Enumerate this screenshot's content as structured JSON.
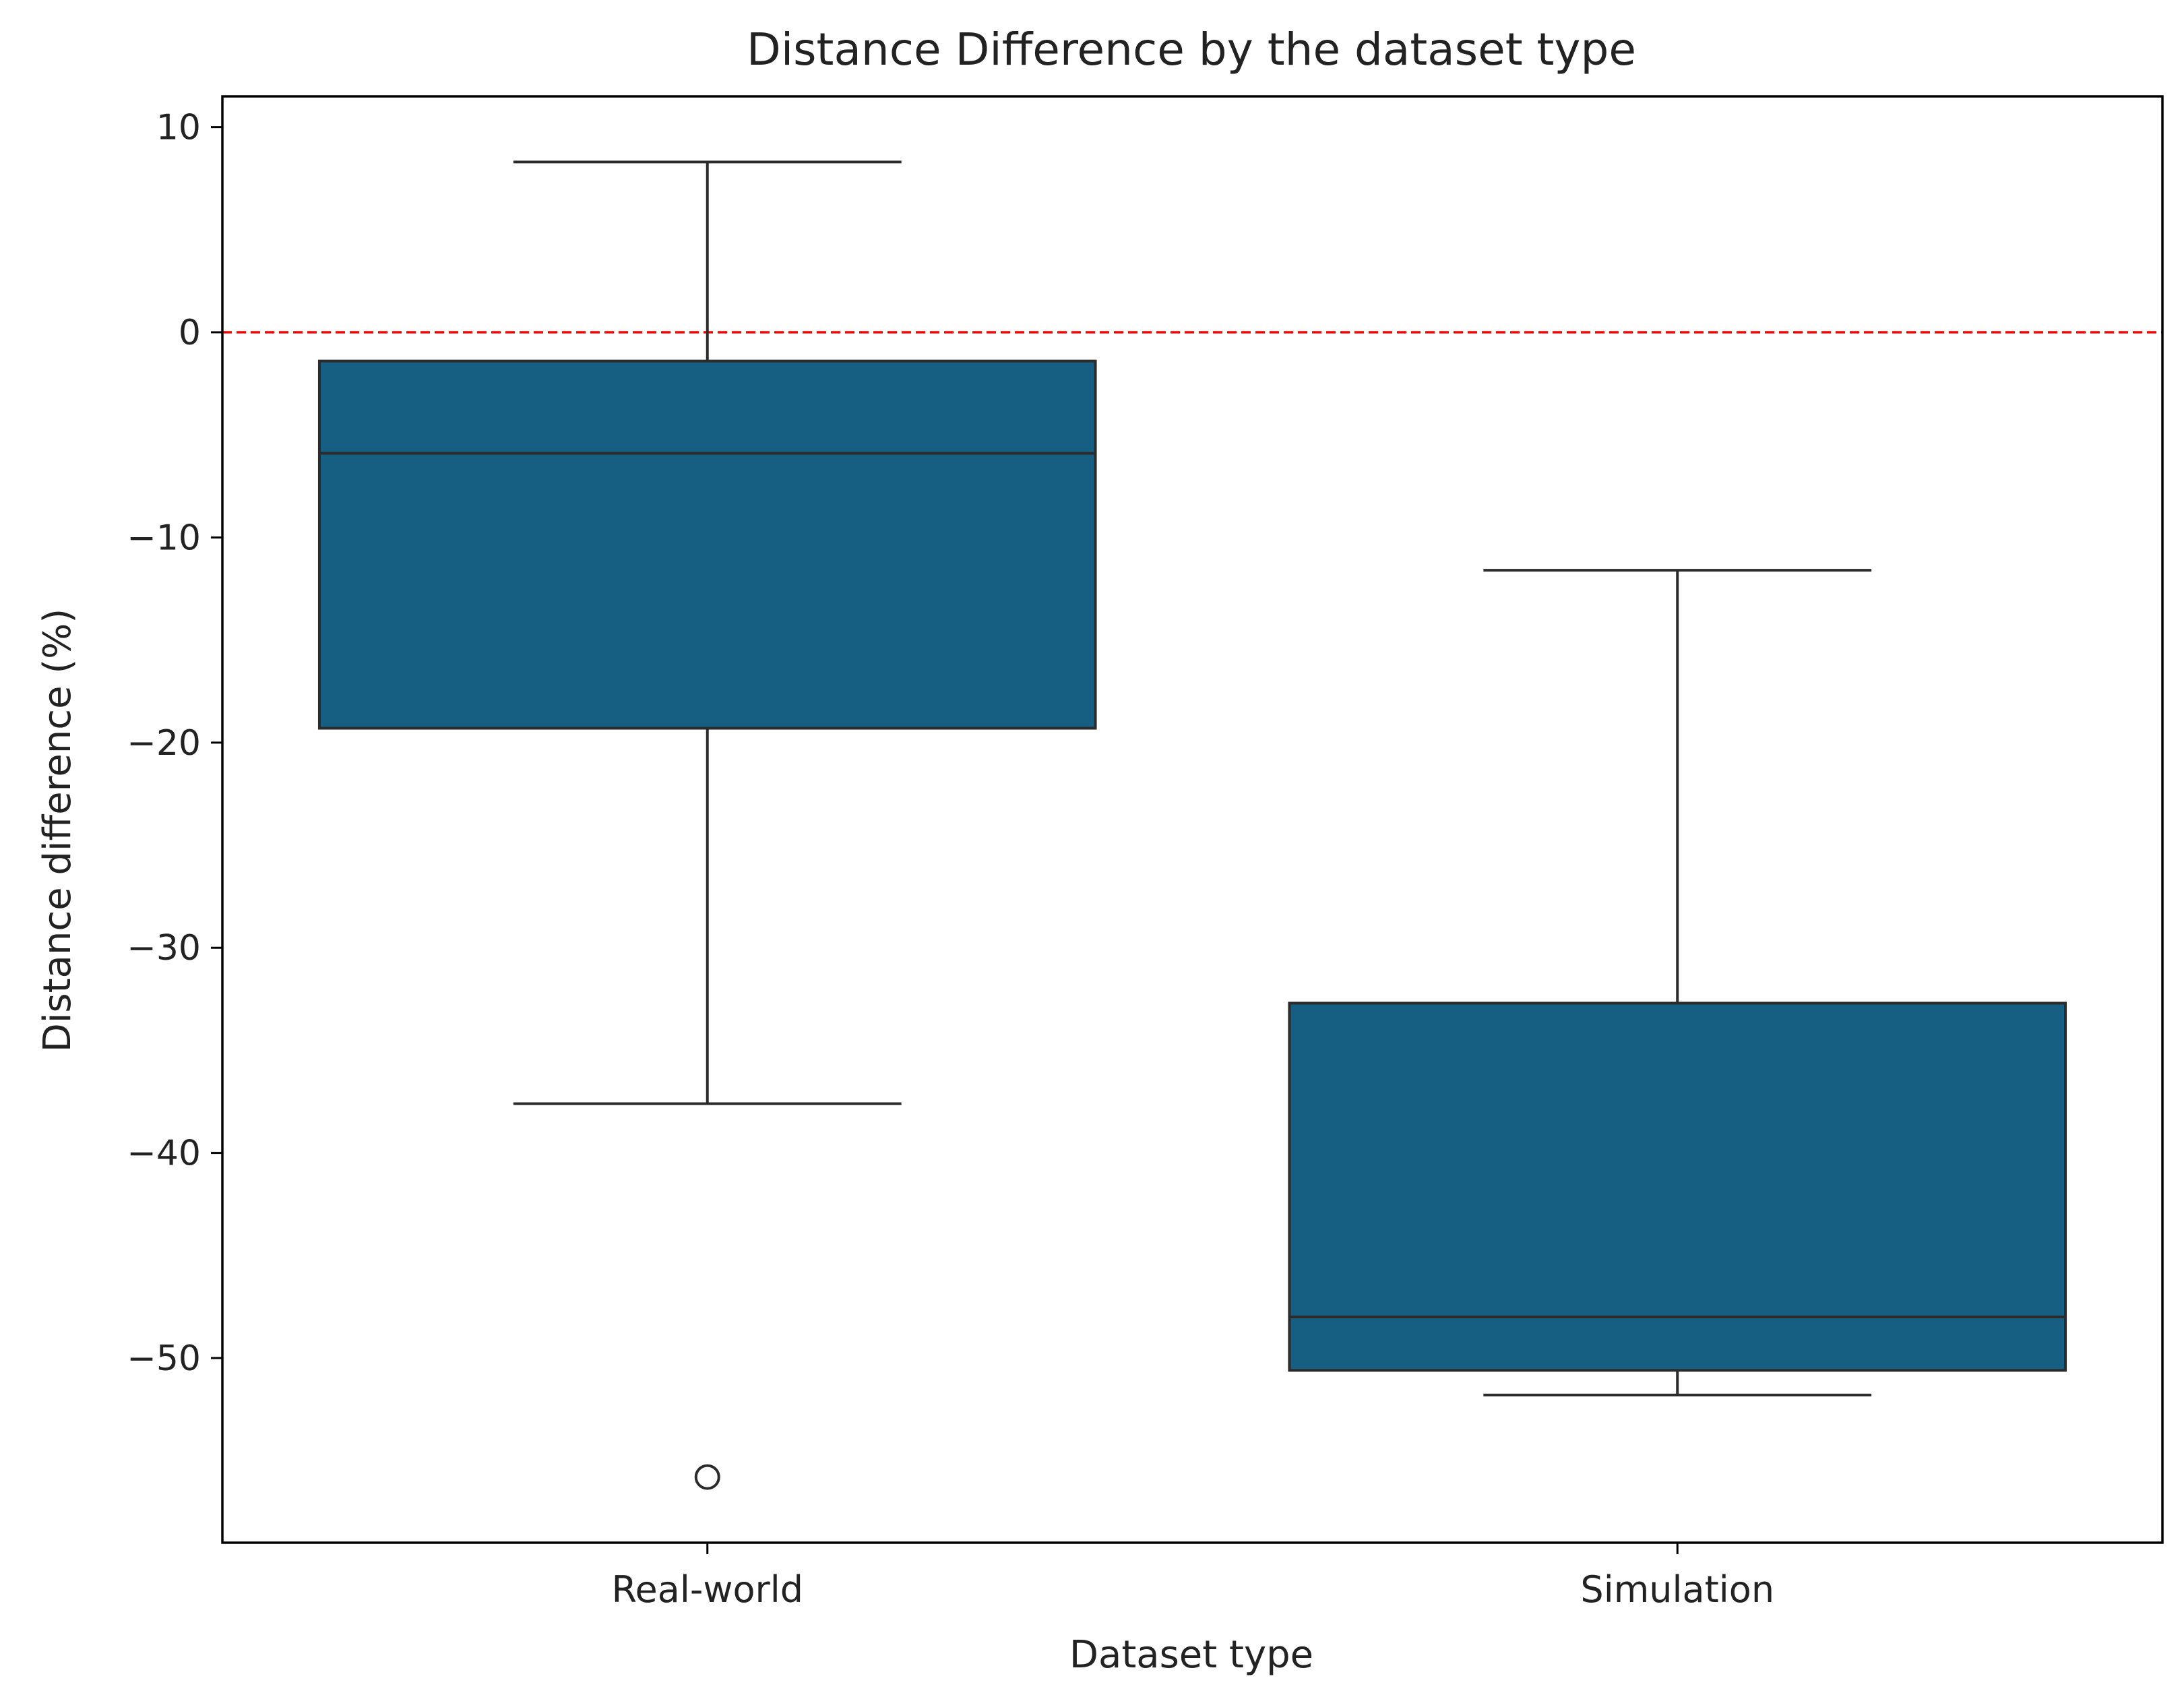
{
  "chart_data": {
    "type": "box",
    "title": "Distance Difference by the dataset type",
    "xlabel": "Dataset type",
    "ylabel": "Distance difference (%)",
    "ylim": [
      -59,
      11.5
    ],
    "yticks": [
      10,
      0,
      -10,
      -20,
      -30,
      -40,
      -50
    ],
    "ytick_labels": [
      "10",
      "0",
      "−10",
      "−20",
      "−30",
      "−40",
      "−50"
    ],
    "categories": [
      "Real-world",
      "Simulation"
    ],
    "boxes": [
      {
        "category": "Real-world",
        "whisker_low": -37.6,
        "q1": -19.3,
        "median": -5.9,
        "q3": -1.4,
        "whisker_high": 8.3,
        "outliers": [
          -55.8
        ]
      },
      {
        "category": "Simulation",
        "whisker_low": -51.8,
        "q1": -50.6,
        "median": -48.0,
        "q3": -32.7,
        "whisker_high": -11.6,
        "outliers": []
      }
    ],
    "reference_line": {
      "y": 0,
      "color": "#ff0000",
      "style": "dashed"
    },
    "box_color": "#165f83",
    "line_color": "#2b2b2b",
    "grid": false,
    "legend": "none"
  }
}
